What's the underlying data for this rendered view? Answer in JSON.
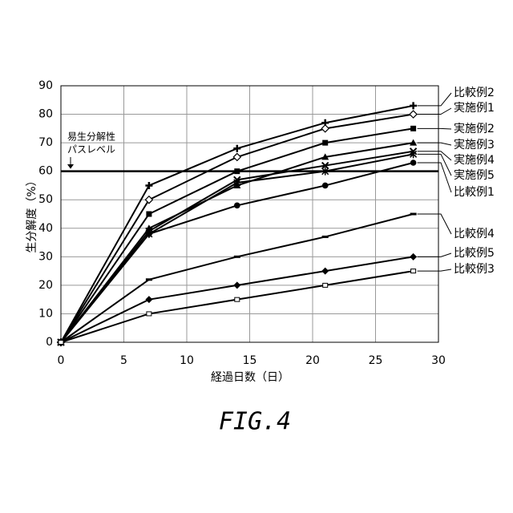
{
  "chart_data": {
    "type": "line",
    "x_label": "経過日数（日）",
    "y_label": "生分解度（%）",
    "caption": "FIG.4",
    "x": [
      0,
      7,
      14,
      21,
      28
    ],
    "xlim": [
      0,
      30
    ],
    "xticks": [
      0,
      5,
      10,
      15,
      20,
      25,
      30
    ],
    "ylim": [
      0,
      90
    ],
    "yticks": [
      0,
      10,
      20,
      30,
      40,
      50,
      60,
      70,
      80,
      90
    ],
    "grid": true,
    "reference_line": {
      "value": 60,
      "label": [
        "易生分解性",
        "パスレベル"
      ]
    },
    "series": [
      {
        "name": "比較例2",
        "color": "#000000",
        "marker": "plus",
        "values": [
          0,
          55,
          68,
          77,
          83
        ]
      },
      {
        "name": "実施例1",
        "color": "#000000",
        "marker": "open-diamond",
        "values": [
          0,
          50,
          65,
          75,
          80
        ]
      },
      {
        "name": "実施例2",
        "color": "#000000",
        "marker": "square",
        "values": [
          0,
          45,
          60,
          70,
          75
        ]
      },
      {
        "name": "実施例3",
        "color": "#000000",
        "marker": "triangle",
        "values": [
          0,
          40,
          55,
          65,
          70
        ]
      },
      {
        "name": "実施例4",
        "color": "#000000",
        "marker": "x",
        "values": [
          0,
          39,
          57,
          62,
          67
        ]
      },
      {
        "name": "実施例5",
        "color": "#000000",
        "marker": "star",
        "values": [
          0,
          38,
          56,
          60,
          66
        ]
      },
      {
        "name": "比較例1",
        "color": "#000000",
        "marker": "circle",
        "values": [
          0,
          38,
          48,
          55,
          63
        ]
      },
      {
        "name": "比較例4",
        "color": "#000000",
        "marker": "dash",
        "values": [
          0,
          22,
          30,
          37,
          45
        ]
      },
      {
        "name": "比較例5",
        "color": "#000000",
        "marker": "diamond",
        "values": [
          0,
          15,
          20,
          25,
          30
        ]
      },
      {
        "name": "比較例3",
        "color": "#000000",
        "marker": "open-square",
        "values": [
          0,
          10,
          15,
          20,
          25
        ]
      }
    ]
  }
}
